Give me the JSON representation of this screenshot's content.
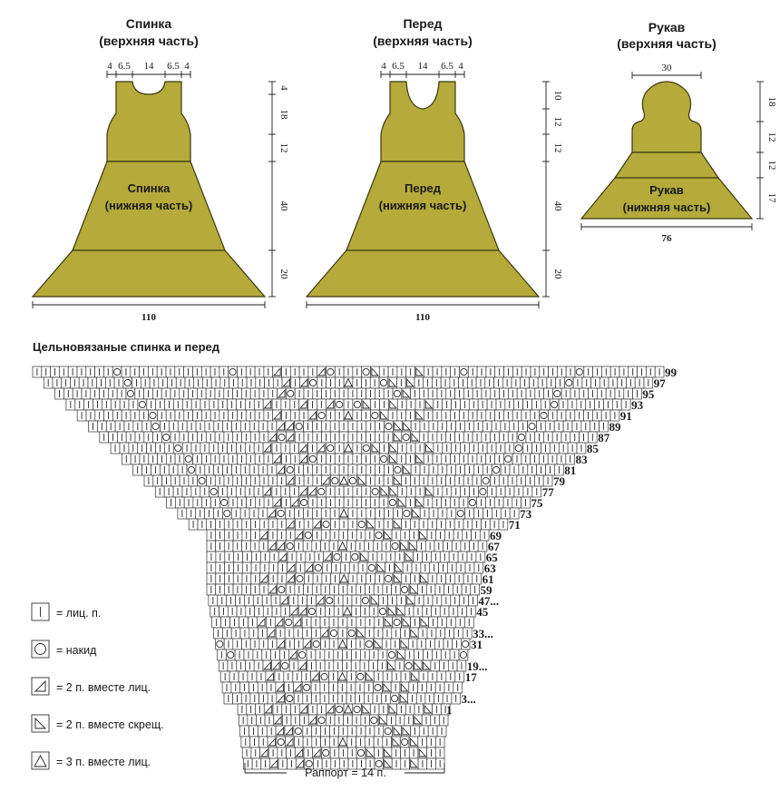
{
  "back": {
    "upper_title": "Спинка",
    "upper_sub": "(верхняя часть)",
    "lower_title": "Спинка",
    "lower_sub": "(нижняя часть)",
    "top_dims": [
      "4",
      "6.5",
      "14",
      "6.5",
      "4"
    ],
    "side_dims": [
      "4",
      "18",
      "12",
      "40",
      "20"
    ],
    "width": "110"
  },
  "front": {
    "upper_title": "Перед",
    "upper_sub": "(верхняя часть)",
    "lower_title": "Перед",
    "lower_sub": "(нижняя часть)",
    "top_dims": [
      "4",
      "6.5",
      "14",
      "6.5",
      "4"
    ],
    "side_dims": [
      "10",
      "12",
      "12",
      "40",
      "20"
    ],
    "width": "110"
  },
  "sleeve": {
    "upper_title": "Рукав",
    "upper_sub": "(верхняя часть)",
    "lower_title": "Рукав",
    "lower_sub": "(нижняя часть)",
    "top_dim": "30",
    "side_dims": [
      "18",
      "12",
      "12",
      "17"
    ],
    "width": "76"
  },
  "chart": {
    "title": "Цельновязаные спинка и перед",
    "repeat_label": "Раппорт = 14 п.",
    "row_labels": [
      "99",
      "97",
      "95",
      "93",
      "91",
      "89",
      "87",
      "85",
      "83",
      "81",
      "79",
      "77",
      "75",
      "73",
      "71",
      "69",
      "67",
      "65",
      "63",
      "61",
      "59",
      "47...",
      "45",
      "33...",
      "31",
      "19...",
      "17",
      "3...",
      "1"
    ]
  },
  "legend": [
    {
      "symbol": "knit",
      "label": "= лиц. п."
    },
    {
      "symbol": "yo",
      "label": "= накид"
    },
    {
      "symbol": "k2tog",
      "label": "= 2 п. вместе лиц."
    },
    {
      "symbol": "k2tog-tbl",
      "label": "= 2 п. вместе скрещ."
    },
    {
      "symbol": "k3tog",
      "label": "= 3 п. вместе лиц."
    }
  ],
  "colors": {
    "piece": "#b5aa3a",
    "outline": "#3a3810"
  }
}
